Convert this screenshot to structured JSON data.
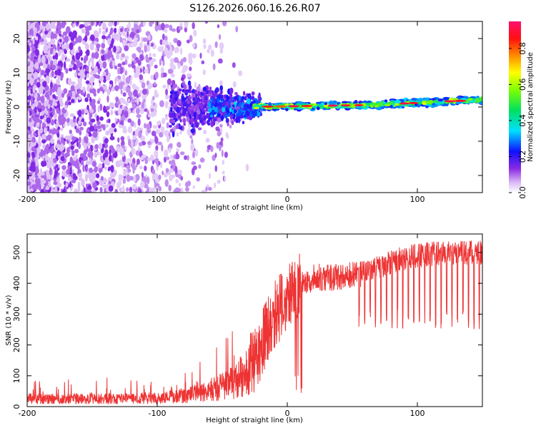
{
  "title": "S126.2026.060.16.26.R07",
  "chart_data": [
    {
      "type": "heatmap",
      "name": "spectrogram",
      "xlabel": "Height of straight line (km)",
      "ylabel": "Frequency (Hz)",
      "xlim": [
        -200,
        150
      ],
      "ylim": [
        -25,
        25
      ],
      "xticks": [
        -200,
        -100,
        0,
        100
      ],
      "yticks": [
        -20,
        -10,
        0,
        10,
        20
      ],
      "colorbar": {
        "label": "Normalized spectral amplitude",
        "range": [
          0,
          0.95
        ],
        "ticks": [
          "0.0",
          "0.2",
          "0.4",
          "0.6",
          "0.8"
        ]
      },
      "features": [
        {
          "x_range": [
            -200,
            -100
          ],
          "description": "broadband noise",
          "amplitude": 0.1
        },
        {
          "x_range": [
            -90,
            -20
          ],
          "description": "noise transition",
          "amplitude": 0.15
        },
        {
          "x_range": [
            -20,
            150
          ],
          "description": "narrow carrier line near 0-2 Hz",
          "amplitude": 0.9
        }
      ]
    },
    {
      "type": "line",
      "name": "snr",
      "xlabel": "Height of straight line (km)",
      "ylabel": "SNR (10 * v/v)",
      "xlim": [
        -200,
        150
      ],
      "ylim": [
        0,
        560
      ],
      "xticks": [
        -200,
        -100,
        0,
        100
      ],
      "yticks": [
        0,
        100,
        200,
        300,
        400,
        500
      ],
      "color": "#ee3333",
      "trend": {
        "x": [
          -200,
          -150,
          -100,
          -80,
          -60,
          -40,
          -30,
          -20,
          -10,
          0,
          10,
          20,
          40,
          60,
          80,
          100,
          120,
          150
        ],
        "y": [
          25,
          25,
          28,
          35,
          50,
          80,
          120,
          200,
          300,
          350,
          390,
          420,
          420,
          430,
          470,
          490,
          500,
          500
        ]
      }
    }
  ]
}
